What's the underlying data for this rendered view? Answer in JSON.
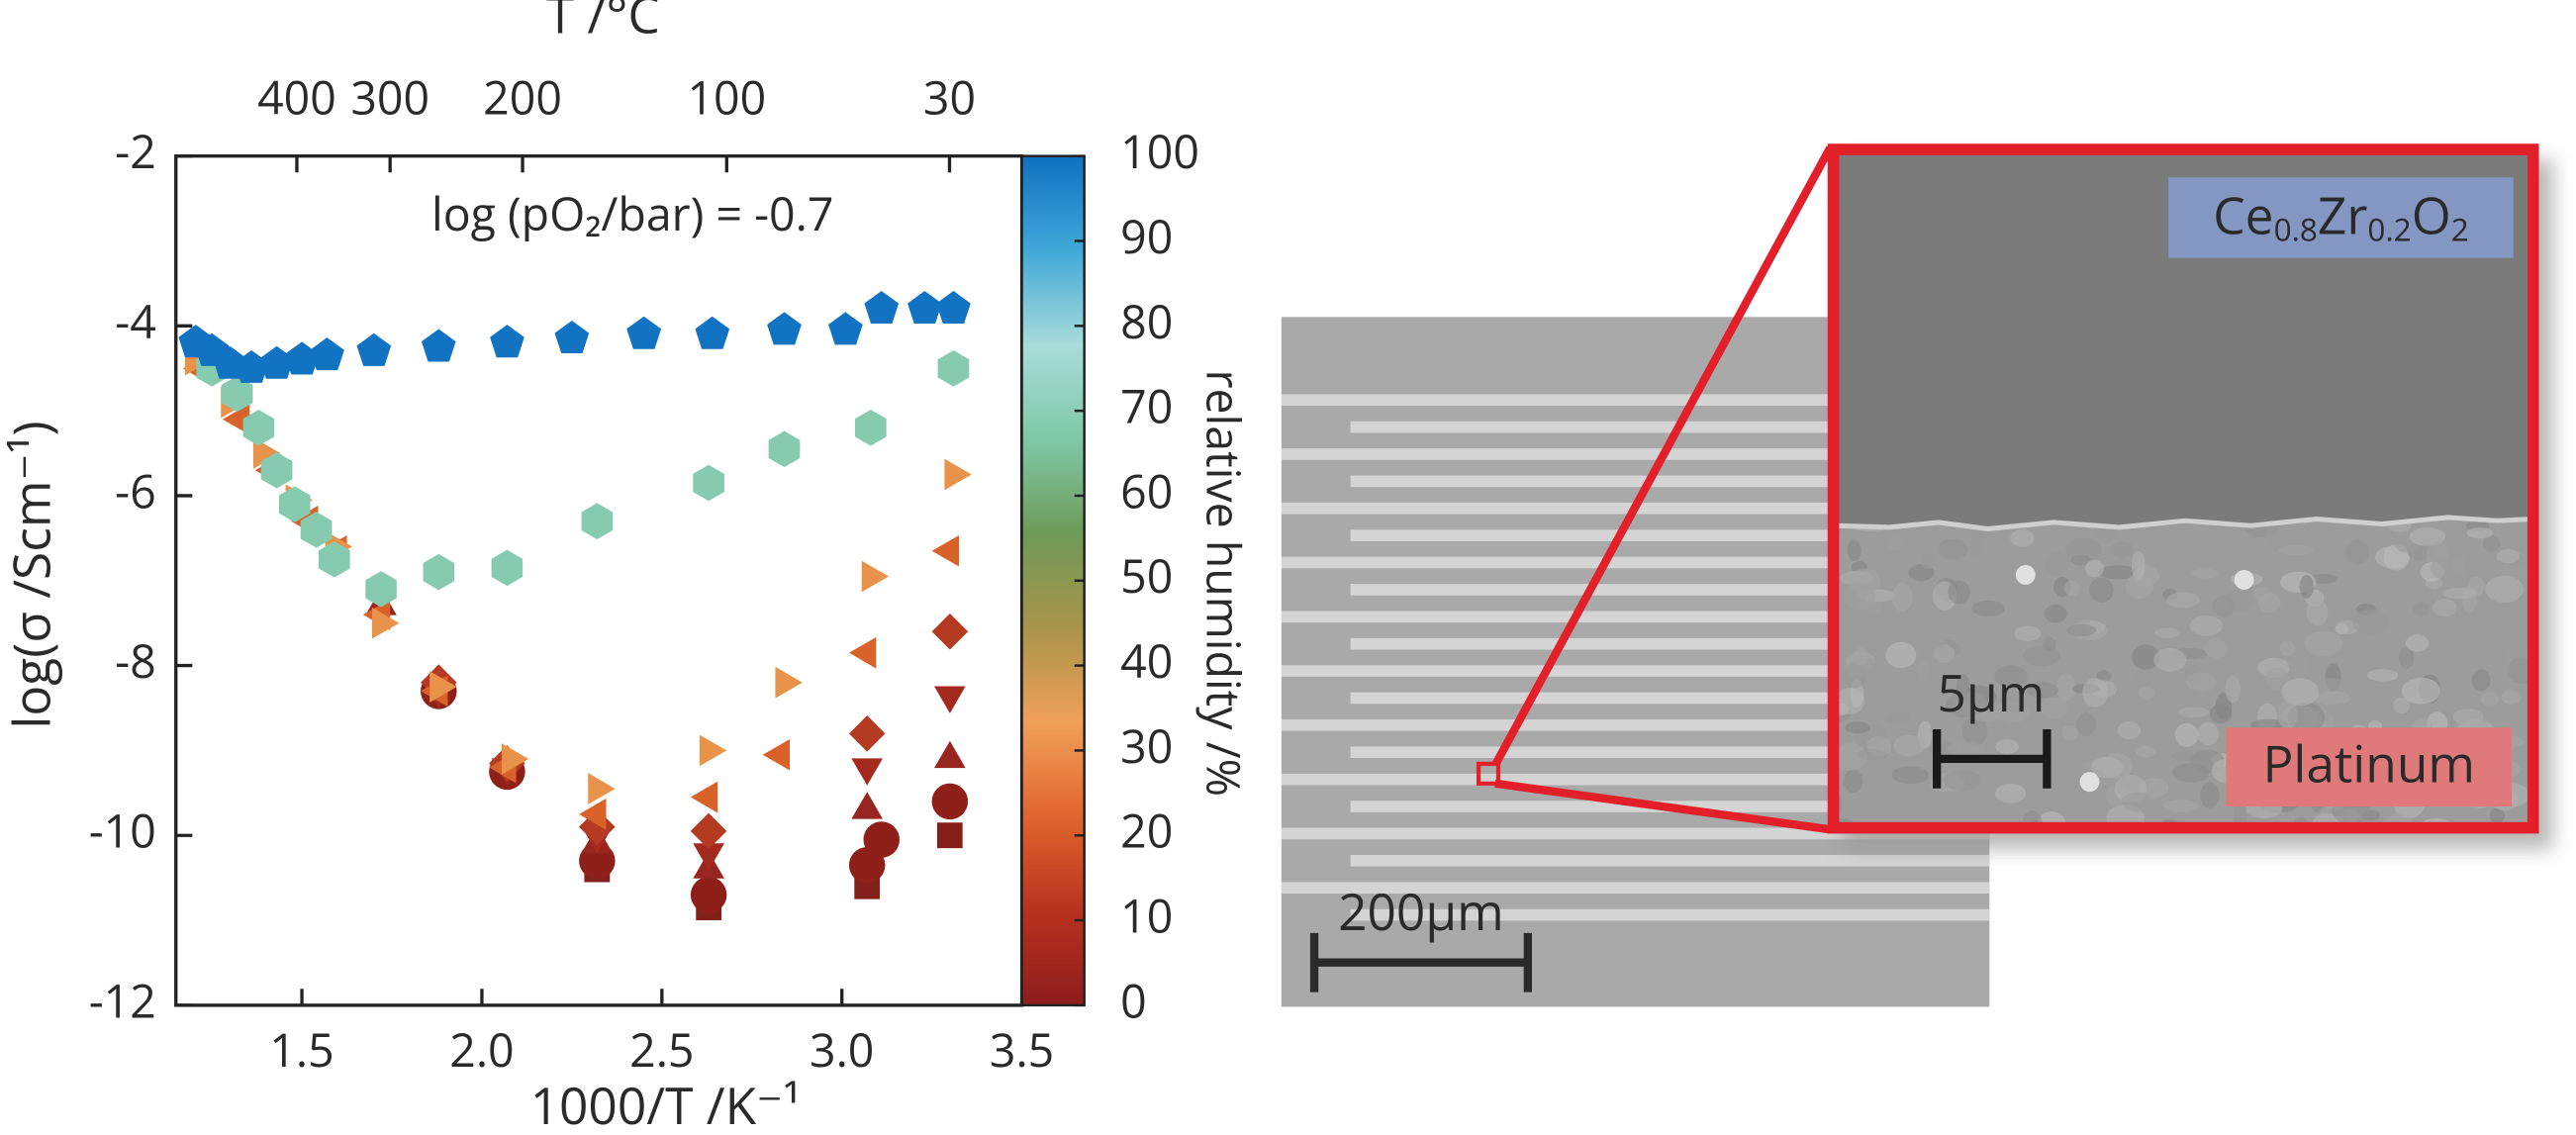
{
  "chart_data": {
    "type": "scatter",
    "top_axis_label": "T /°C",
    "xlabel": "1000/T /K⁻¹",
    "ylabel": "log(σ /Scm⁻¹)",
    "annotation": "log (pO₂/bar) = -0.7",
    "xlim": [
      1.15,
      3.5
    ],
    "ylim": [
      -12,
      -2
    ],
    "xticks": [
      1.5,
      {
        "value": 2,
        "label": "2.0"
      },
      2.5,
      {
        "value": 3,
        "label": "3.0"
      },
      3.5
    ],
    "yticks": [
      -12,
      -10,
      -8,
      -6,
      -4,
      -2
    ],
    "x2ticks": [
      {
        "value": 1.486,
        "label": "400"
      },
      {
        "value": 1.745,
        "label": "300"
      },
      {
        "value": 2.113,
        "label": "200"
      },
      {
        "value": 2.68,
        "label": "100"
      },
      {
        "value": 3.299,
        "label": "30"
      }
    ],
    "colorbar": {
      "label": "relative humidity /%",
      "clim": [
        0,
        100
      ],
      "ticks": [
        0,
        10,
        20,
        30,
        40,
        50,
        60,
        70,
        80,
        90,
        100
      ],
      "colorscale": [
        "#8c1c1c",
        "#b8321f",
        "#e0652e",
        "#f0a05a",
        "#a8944a",
        "#6e9a58",
        "#7fc8a8",
        "#a8dcd8",
        "#40a8d8",
        "#1070c0"
      ]
    },
    "series": [
      {
        "marker": "pentagon",
        "color": "#1273c2",
        "x": [
          1.205,
          1.25,
          1.3,
          1.36,
          1.43,
          1.5,
          1.57,
          1.7,
          1.88,
          2.07,
          2.25,
          2.45,
          2.64,
          2.84,
          3.01,
          3.11,
          3.23,
          3.31
        ],
        "values": [
          -4.2,
          -4.3,
          -4.45,
          -4.5,
          -4.45,
          -4.4,
          -4.35,
          -4.3,
          -4.25,
          -4.2,
          -4.15,
          -4.1,
          -4.1,
          -4.05,
          -4.05,
          -3.8,
          -3.8,
          -3.8
        ]
      },
      {
        "marker": "hexagon",
        "color": "#86cbb0",
        "x": [
          1.25,
          1.32,
          1.38,
          1.43,
          1.48,
          1.54,
          1.59,
          1.72,
          1.88,
          2.07,
          2.32,
          2.63,
          2.84,
          3.08,
          3.31
        ],
        "values": [
          -4.5,
          -4.8,
          -5.2,
          -5.7,
          -6.1,
          -6.4,
          -6.75,
          -7.1,
          -6.9,
          -6.85,
          -6.3,
          -5.85,
          -5.45,
          -5.2,
          -4.5
        ]
      },
      {
        "marker": "triangle-right",
        "color": "#e8924a",
        "x": [
          1.2,
          1.3,
          1.39,
          1.48,
          1.59,
          1.72,
          1.88,
          2.08,
          2.32,
          2.63,
          2.84,
          3.08,
          3.31
        ],
        "values": [
          -4.4,
          -4.9,
          -5.5,
          -6.05,
          -6.6,
          -7.5,
          -8.25,
          -9.1,
          -9.45,
          -9.0,
          -8.2,
          -6.95,
          -5.75
        ]
      },
      {
        "marker": "triangle-left",
        "color": "#d9622b",
        "x": [
          1.22,
          1.33,
          1.42,
          1.52,
          1.6,
          1.72,
          1.88,
          2.07,
          2.32,
          2.63,
          2.83,
          3.07,
          3.3
        ],
        "values": [
          -4.5,
          -5.1,
          -5.7,
          -6.3,
          -6.65,
          -7.4,
          -8.3,
          -9.2,
          -9.75,
          -9.55,
          -9.05,
          -7.85,
          -6.65
        ]
      },
      {
        "marker": "diamond",
        "color": "#b53a22",
        "x": [
          1.88,
          2.07,
          2.32,
          2.63,
          3.07,
          3.3
        ],
        "values": [
          -8.2,
          -9.15,
          -9.9,
          -9.95,
          -8.8,
          -7.6
        ]
      },
      {
        "marker": "triangle-down",
        "color": "#a52a1e",
        "x": [
          1.88,
          2.07,
          2.32,
          2.63,
          3.07,
          3.3
        ],
        "values": [
          -8.3,
          -9.2,
          -10.0,
          -10.2,
          -9.2,
          -8.35
        ]
      },
      {
        "marker": "triangle-up",
        "color": "#992520",
        "x": [
          1.72,
          2.32,
          2.63,
          3.07,
          3.3
        ],
        "values": [
          -7.3,
          -10.1,
          -10.4,
          -9.7,
          -9.1
        ]
      },
      {
        "marker": "circle",
        "color": "#8f2019",
        "x": [
          1.88,
          2.07,
          2.32,
          2.63,
          3.07,
          3.11,
          3.3
        ],
        "values": [
          -8.3,
          -9.25,
          -10.3,
          -10.7,
          -10.35,
          -10.05,
          -9.6
        ]
      },
      {
        "marker": "square",
        "color": "#84201a",
        "x": [
          2.32,
          2.63,
          3.07,
          3.3
        ],
        "values": [
          -10.4,
          -10.85,
          -10.6,
          -10.0
        ]
      }
    ]
  },
  "images": {
    "overview_scale": "200µm",
    "inset_scale": "5µm",
    "material_label": [
      "Ce",
      "0.8",
      "Zr",
      "0.2",
      "O",
      "2"
    ],
    "electrode_label": "Platinum"
  }
}
